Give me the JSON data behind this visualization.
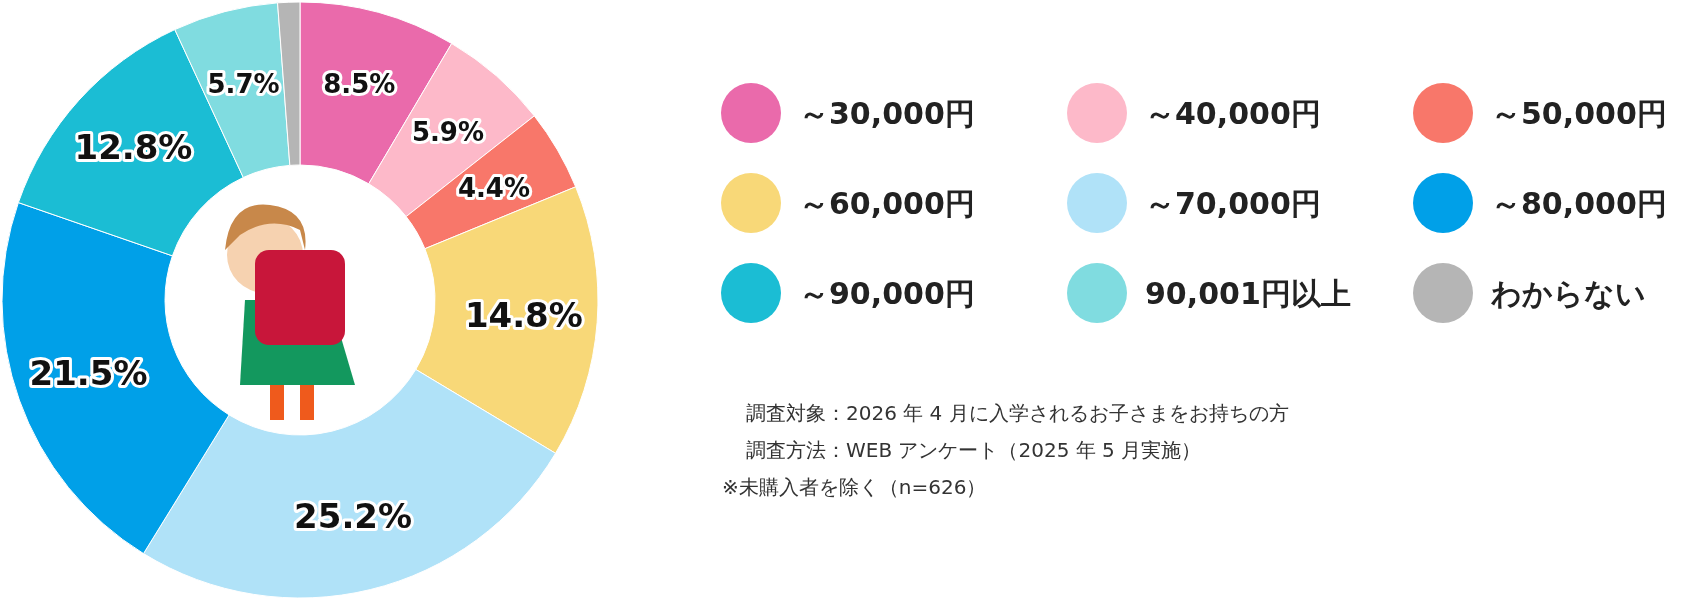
{
  "chart_data": {
    "type": "donut",
    "categories": [
      "～30,000円",
      "～40,000円",
      "～50,000円",
      "～60,000円",
      "～70,000円",
      "～80,000円",
      "～90,000円",
      "90,001円以上",
      "わからない"
    ],
    "values": [
      8.5,
      5.9,
      4.4,
      14.8,
      25.2,
      21.5,
      12.8,
      5.7,
      1.2
    ],
    "colors": [
      "#ea6aab",
      "#fdb9c9",
      "#f8776a",
      "#f8d878",
      "#b0e2f8",
      "#00a0e8",
      "#1bbdd4",
      "#80dce0",
      "#b5b5b5"
    ],
    "value_labels": [
      "8.5%",
      "5.9%",
      "4.4%",
      "14.8%",
      "25.2%",
      "21.5%",
      "12.8%",
      "5.7%",
      null
    ],
    "legend": "right",
    "annotations": [
      "調査対象：2026 年 4 月に入学されるお子さまをお持ちの方",
      "調査方法：WEB アンケート（2025 年 5 月実施）",
      "※未購入者を除く（n=626）"
    ]
  }
}
